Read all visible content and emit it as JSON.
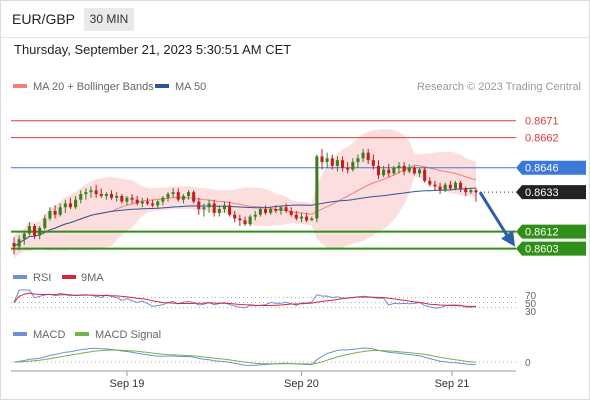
{
  "header": {
    "symbol": "EUR/GBP",
    "timeframe": "30 MIN",
    "datetime": "Thursday, September 21, 2023 5:30:51 AM CET"
  },
  "legend": {
    "ma20": "MA 20 + Bollinger Bands",
    "ma50": "MA 50",
    "credit": "Research © 2023 Trading Central",
    "rsi": "RSI",
    "rsi_ma": "9MA",
    "macd": "MACD",
    "macd_signal": "MACD Signal"
  },
  "colors": {
    "ma20": "#f08080",
    "ma50": "#2e5597",
    "band_fill": "#fcdada",
    "resistance": "#e23a3a",
    "pivot": "#3c78d8",
    "support": "#2f8f16",
    "candle_up": "#3a7d1c",
    "candle_down": "#c01e1e",
    "arrow": "#2e5fa8",
    "rsi": "#6f8fd8",
    "rsi_ma": "#d6263d",
    "macd": "#6f8fd8",
    "macd_signal": "#73b34a"
  },
  "levels": [
    {
      "value": 0.8671,
      "label": "0.8671",
      "kind": "resistance"
    },
    {
      "value": 0.8662,
      "label": "0.8662",
      "kind": "resistance"
    },
    {
      "value": 0.8646,
      "label": "0.8646",
      "kind": "pivot"
    },
    {
      "value": 0.8612,
      "label": "0.8612",
      "kind": "support"
    },
    {
      "value": 0.8603,
      "label": "0.8603",
      "kind": "support"
    }
  ],
  "current_price": {
    "value": 0.8633,
    "label": "0.8633"
  },
  "chart_data": {
    "type": "candlestick",
    "ylim": [
      0.8598,
      0.8682
    ],
    "x_ticks": [
      "Sep 19",
      "Sep 20",
      "Sep 21"
    ],
    "candles": [
      [
        0.8606,
        0.8609,
        0.86,
        0.8604
      ],
      [
        0.8604,
        0.861,
        0.8602,
        0.8608
      ],
      [
        0.8608,
        0.8612,
        0.8605,
        0.8611
      ],
      [
        0.8611,
        0.8617,
        0.861,
        0.8615
      ],
      [
        0.8615,
        0.8616,
        0.8608,
        0.861
      ],
      [
        0.861,
        0.8615,
        0.8608,
        0.8614
      ],
      [
        0.8614,
        0.8621,
        0.8613,
        0.8619
      ],
      [
        0.8619,
        0.8625,
        0.8618,
        0.8623
      ],
      [
        0.8623,
        0.8626,
        0.8619,
        0.8621
      ],
      [
        0.8621,
        0.8627,
        0.862,
        0.8625
      ],
      [
        0.8625,
        0.8629,
        0.8622,
        0.8627
      ],
      [
        0.8627,
        0.863,
        0.8624,
        0.8625
      ],
      [
        0.8625,
        0.8631,
        0.8624,
        0.8629
      ],
      [
        0.8629,
        0.8634,
        0.8627,
        0.8632
      ],
      [
        0.8632,
        0.8635,
        0.8629,
        0.8633
      ],
      [
        0.8633,
        0.8636,
        0.863,
        0.8634
      ],
      [
        0.8634,
        0.8637,
        0.863,
        0.8632
      ],
      [
        0.8632,
        0.8635,
        0.863,
        0.8631
      ],
      [
        0.8631,
        0.8633,
        0.8629,
        0.8632
      ],
      [
        0.8632,
        0.8634,
        0.8629,
        0.863
      ],
      [
        0.863,
        0.8633,
        0.8628,
        0.8631
      ],
      [
        0.8631,
        0.8632,
        0.8627,
        0.8628
      ],
      [
        0.8628,
        0.8631,
        0.8626,
        0.863
      ],
      [
        0.863,
        0.8632,
        0.8627,
        0.8629
      ],
      [
        0.8629,
        0.8631,
        0.8626,
        0.8627
      ],
      [
        0.8627,
        0.863,
        0.8625,
        0.8628
      ],
      [
        0.8628,
        0.863,
        0.8626,
        0.8627
      ],
      [
        0.8627,
        0.8629,
        0.8625,
        0.8626
      ],
      [
        0.8626,
        0.8629,
        0.8624,
        0.8628
      ],
      [
        0.8628,
        0.8631,
        0.8626,
        0.863
      ],
      [
        0.863,
        0.8633,
        0.8628,
        0.8632
      ],
      [
        0.8632,
        0.8635,
        0.863,
        0.8633
      ],
      [
        0.8633,
        0.8635,
        0.8628,
        0.8629
      ],
      [
        0.8629,
        0.8632,
        0.8627,
        0.8631
      ],
      [
        0.8631,
        0.8634,
        0.8629,
        0.8633
      ],
      [
        0.8633,
        0.8634,
        0.8627,
        0.8628
      ],
      [
        0.8628,
        0.863,
        0.8621,
        0.8624
      ],
      [
        0.8624,
        0.8627,
        0.862,
        0.8625
      ],
      [
        0.8625,
        0.8629,
        0.8622,
        0.8627
      ],
      [
        0.8627,
        0.8629,
        0.862,
        0.8622
      ],
      [
        0.8622,
        0.8626,
        0.862,
        0.8624
      ],
      [
        0.8624,
        0.8628,
        0.8622,
        0.8626
      ],
      [
        0.8626,
        0.8628,
        0.862,
        0.8621
      ],
      [
        0.8621,
        0.8623,
        0.8617,
        0.8619
      ],
      [
        0.8619,
        0.8621,
        0.8615,
        0.8618
      ],
      [
        0.8618,
        0.862,
        0.8615,
        0.8616
      ],
      [
        0.8616,
        0.8621,
        0.8615,
        0.862
      ],
      [
        0.862,
        0.8623,
        0.8618,
        0.8621
      ],
      [
        0.8621,
        0.8625,
        0.862,
        0.8624
      ],
      [
        0.8624,
        0.8626,
        0.8621,
        0.8622
      ],
      [
        0.8622,
        0.8625,
        0.8621,
        0.8624
      ],
      [
        0.8624,
        0.8626,
        0.8622,
        0.8623
      ],
      [
        0.8623,
        0.8626,
        0.8621,
        0.8625
      ],
      [
        0.8625,
        0.8627,
        0.8622,
        0.8623
      ],
      [
        0.8623,
        0.8625,
        0.862,
        0.8621
      ],
      [
        0.8621,
        0.8623,
        0.8618,
        0.8619
      ],
      [
        0.8619,
        0.8622,
        0.8617,
        0.862
      ],
      [
        0.862,
        0.8622,
        0.8617,
        0.8618
      ],
      [
        0.8618,
        0.862,
        0.8618,
        0.8619
      ],
      [
        0.8619,
        0.8653,
        0.8617,
        0.8652
      ],
      [
        0.8652,
        0.8656,
        0.8645,
        0.8649
      ],
      [
        0.8649,
        0.8654,
        0.8646,
        0.8651
      ],
      [
        0.8651,
        0.8653,
        0.8645,
        0.8647
      ],
      [
        0.8647,
        0.8652,
        0.8644,
        0.865
      ],
      [
        0.865,
        0.8652,
        0.8644,
        0.8646
      ],
      [
        0.8646,
        0.8649,
        0.8643,
        0.8645
      ],
      [
        0.8645,
        0.8651,
        0.8644,
        0.8649
      ],
      [
        0.8649,
        0.8653,
        0.8646,
        0.8651
      ],
      [
        0.8651,
        0.8656,
        0.8649,
        0.8654
      ],
      [
        0.8654,
        0.8656,
        0.8648,
        0.865
      ],
      [
        0.865,
        0.8653,
        0.8645,
        0.8647
      ],
      [
        0.8647,
        0.865,
        0.864,
        0.8642
      ],
      [
        0.8642,
        0.8647,
        0.8641,
        0.8645
      ],
      [
        0.8645,
        0.8648,
        0.8641,
        0.8643
      ],
      [
        0.8643,
        0.8647,
        0.8642,
        0.8646
      ],
      [
        0.8646,
        0.8649,
        0.8643,
        0.8647
      ],
      [
        0.8647,
        0.8649,
        0.8642,
        0.8644
      ],
      [
        0.8644,
        0.8648,
        0.8643,
        0.8646
      ],
      [
        0.8646,
        0.8647,
        0.8642,
        0.8643
      ],
      [
        0.8643,
        0.8646,
        0.8641,
        0.8645
      ],
      [
        0.8645,
        0.8646,
        0.8638,
        0.8639
      ],
      [
        0.8639,
        0.8641,
        0.8636,
        0.8637
      ],
      [
        0.8637,
        0.8639,
        0.8634,
        0.8636
      ],
      [
        0.8636,
        0.8638,
        0.8632,
        0.8634
      ],
      [
        0.8634,
        0.8638,
        0.8633,
        0.8637
      ],
      [
        0.8637,
        0.8639,
        0.8634,
        0.8635
      ],
      [
        0.8635,
        0.8639,
        0.8634,
        0.8638
      ],
      [
        0.8638,
        0.8639,
        0.8633,
        0.8635
      ],
      [
        0.8635,
        0.8636,
        0.8631,
        0.8633
      ],
      [
        0.8633,
        0.8635,
        0.8632,
        0.8634
      ],
      [
        0.8634,
        0.8635,
        0.8628,
        0.8633
      ]
    ],
    "rsi_levels": [
      "70",
      "50",
      "30"
    ],
    "macd_levels": [
      "0"
    ]
  }
}
